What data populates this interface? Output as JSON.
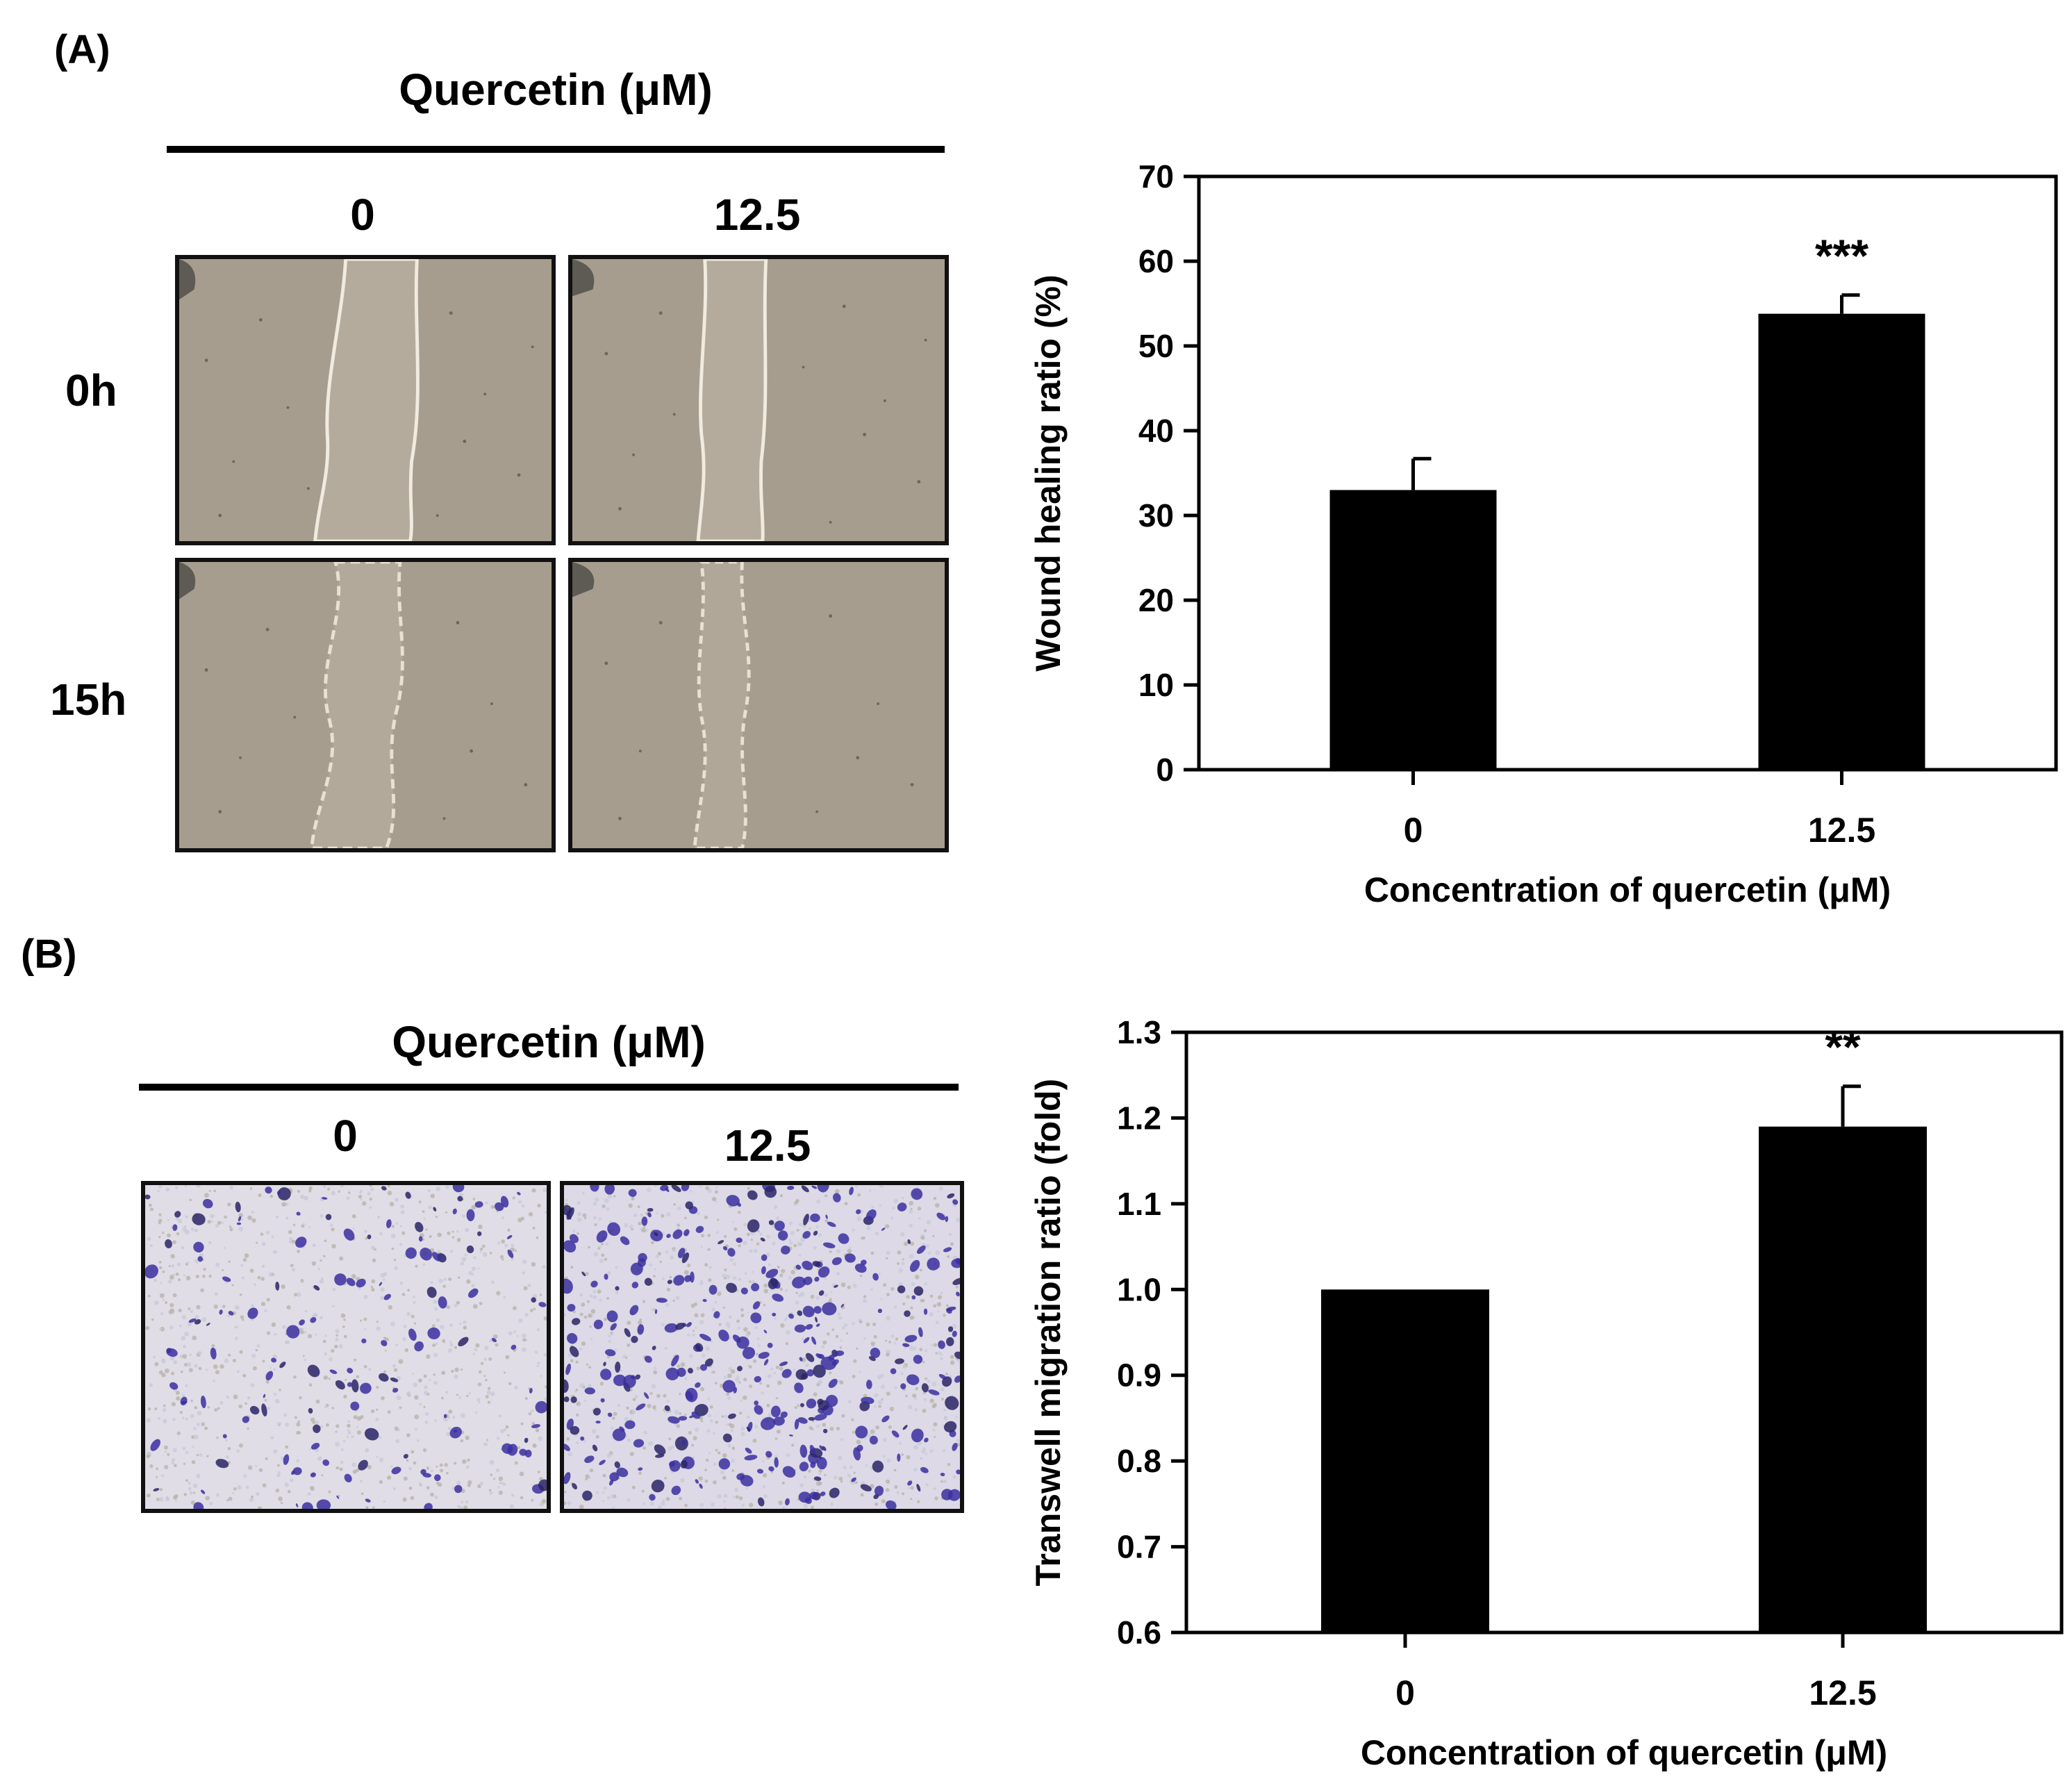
{
  "panel_a": {
    "label": "(A)",
    "treatment_title": "Quercetin (μM)",
    "columns": [
      "0",
      "12.5"
    ],
    "rows": [
      "0h",
      "15h"
    ],
    "images": [
      {
        "row": "0h",
        "col": "0",
        "kind": "scratch-gap-wide"
      },
      {
        "row": "0h",
        "col": "12.5",
        "kind": "scratch-gap-wide"
      },
      {
        "row": "15h",
        "col": "0",
        "kind": "scratch-gap-partial"
      },
      {
        "row": "15h",
        "col": "12.5",
        "kind": "scratch-gap-narrow"
      }
    ]
  },
  "panel_b": {
    "label": "(B)",
    "treatment_title": "Quercetin (μM)",
    "columns": [
      "0",
      "12.5"
    ],
    "images": [
      {
        "col": "0",
        "kind": "transwell-stain-sparse"
      },
      {
        "col": "12.5",
        "kind": "transwell-stain-dense"
      }
    ]
  },
  "chart_data": [
    {
      "type": "bar",
      "categories": [
        "0",
        "12.5"
      ],
      "values": [
        33,
        53.8
      ],
      "errors": [
        3.7,
        2.2
      ],
      "annotations": [
        "",
        "***"
      ],
      "xlabel": "Concentration of quercetin (μM)",
      "ylabel": "Wound healing ratio (%)",
      "ylim": [
        0,
        70
      ],
      "yticks": [
        "0",
        "10",
        "20",
        "30",
        "40",
        "50",
        "60",
        "70"
      ],
      "bar_color": "#000000",
      "grid": false
    },
    {
      "type": "bar",
      "categories": [
        "0",
        "12.5"
      ],
      "values": [
        1.0,
        1.19
      ],
      "errors": [
        0,
        0.047
      ],
      "annotations": [
        "",
        "**"
      ],
      "xlabel": "Concentration of quercetin (μM)",
      "ylabel": "Transwell migration ratio (fold)",
      "ylim": [
        0.6,
        1.3
      ],
      "yticks": [
        "0.6",
        "0.7",
        "0.8",
        "0.9",
        "1.0",
        "1.1",
        "1.2",
        "1.3"
      ],
      "bar_color": "#000000",
      "grid": false
    }
  ]
}
